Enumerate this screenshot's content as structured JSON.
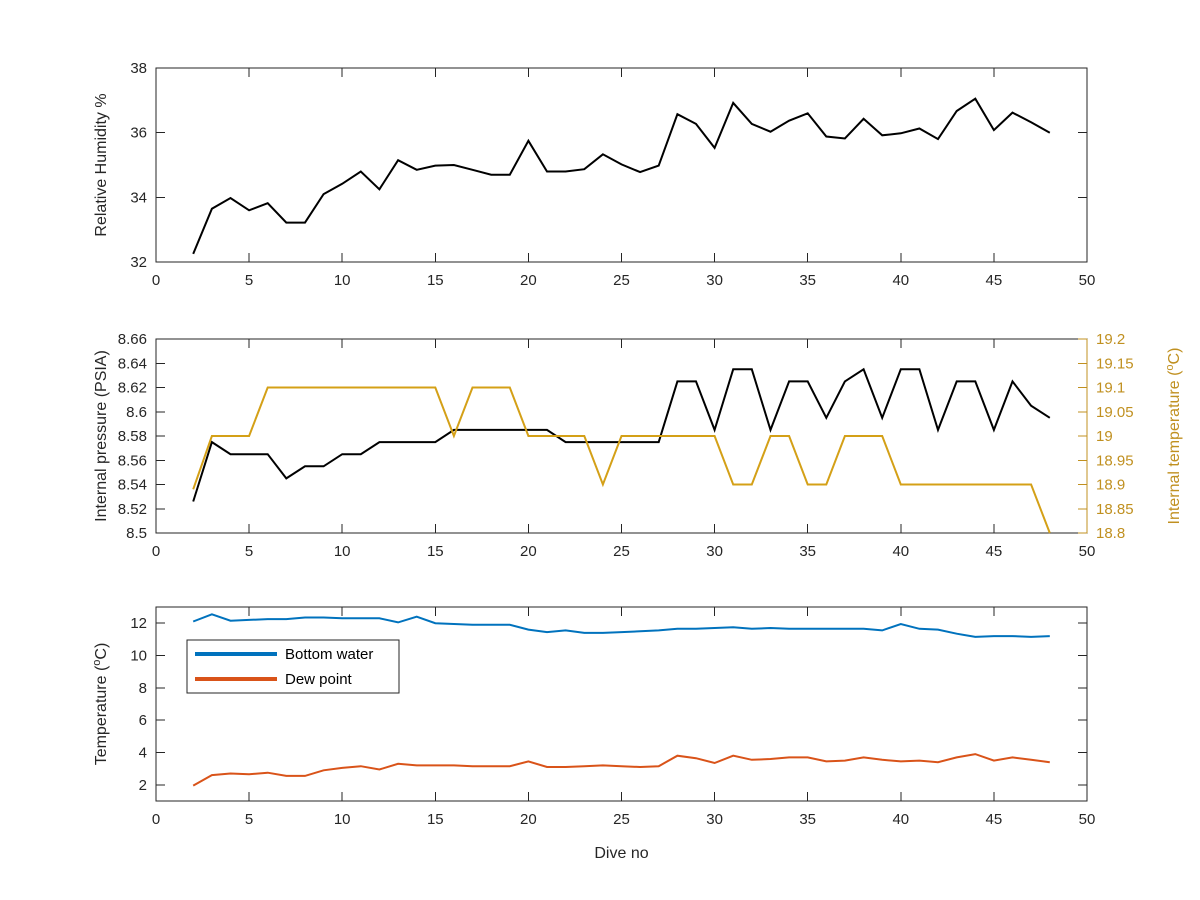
{
  "chart_data": [
    {
      "type": "line",
      "ylabel": "Relative Humidity %",
      "xlabel": "",
      "xlim": [
        0,
        50
      ],
      "ylim": [
        32,
        38
      ],
      "xticks": [
        0,
        5,
        10,
        15,
        20,
        25,
        30,
        35,
        40,
        45,
        50
      ],
      "yticks": [
        32,
        34,
        36,
        38
      ],
      "grid": false,
      "colors": {
        "humidity": "#000000"
      },
      "x": [
        2,
        3,
        4,
        5,
        6,
        7,
        8,
        9,
        10,
        11,
        12,
        13,
        14,
        15,
        16,
        17,
        18,
        19,
        20,
        21,
        22,
        23,
        24,
        25,
        26,
        27,
        28,
        29,
        30,
        31,
        32,
        33,
        34,
        35,
        36,
        37,
        38,
        39,
        40,
        41,
        42,
        43,
        44,
        45,
        46,
        47,
        48
      ],
      "series": [
        {
          "values": [
            32.25,
            33.65,
            33.98,
            33.6,
            33.82,
            33.22,
            33.22,
            34.1,
            34.42,
            34.8,
            34.25,
            35.15,
            34.85,
            34.98,
            35.0,
            34.85,
            34.7,
            34.7,
            35.75,
            34.8,
            34.8,
            34.87,
            35.33,
            35.02,
            34.78,
            34.98,
            36.57,
            36.27,
            35.53,
            36.92,
            36.27,
            36.03,
            36.37,
            36.6,
            35.88,
            35.82,
            36.43,
            35.92,
            35.98,
            36.13,
            35.8,
            36.67,
            37.05,
            36.08,
            36.62,
            36.32,
            36.0
          ]
        }
      ]
    },
    {
      "type": "line",
      "ylabel": "Internal pressure (PSIA)",
      "y2label": "Internal temperature (°C)",
      "xlabel": "",
      "xlim": [
        0,
        50
      ],
      "ylim": [
        8.5,
        8.66
      ],
      "y2lim": [
        18.8,
        19.2
      ],
      "xticks": [
        0,
        5,
        10,
        15,
        20,
        25,
        30,
        35,
        40,
        45,
        50
      ],
      "yticks": [
        "8.5",
        "8.52",
        "8.54",
        "8.56",
        "8.58",
        "8.6",
        "8.62",
        "8.64",
        "8.66"
      ],
      "y2ticks": [
        "18.8",
        "18.85",
        "18.9",
        "18.95",
        "19",
        "19.05",
        "19.1",
        "19.15",
        "19.2"
      ],
      "grid": false,
      "colors": {
        "pressure": "#000000",
        "temperature": "#D4A017",
        "right_axis": "#C09020"
      },
      "x": [
        2,
        3,
        4,
        5,
        6,
        7,
        8,
        9,
        10,
        11,
        12,
        13,
        14,
        15,
        16,
        17,
        18,
        19,
        20,
        21,
        22,
        23,
        24,
        25,
        26,
        27,
        28,
        29,
        30,
        31,
        32,
        33,
        34,
        35,
        36,
        37,
        38,
        39,
        40,
        41,
        42,
        43,
        44,
        45,
        46,
        47,
        48
      ],
      "series": [
        {
          "axis": "left",
          "values": [
            8.526,
            8.575,
            8.565,
            8.565,
            8.565,
            8.545,
            8.555,
            8.555,
            8.565,
            8.565,
            8.575,
            8.575,
            8.575,
            8.575,
            8.585,
            8.585,
            8.585,
            8.585,
            8.585,
            8.585,
            8.575,
            8.575,
            8.575,
            8.575,
            8.575,
            8.575,
            8.625,
            8.625,
            8.585,
            8.635,
            8.635,
            8.585,
            8.625,
            8.625,
            8.595,
            8.625,
            8.635,
            8.595,
            8.635,
            8.635,
            8.585,
            8.625,
            8.625,
            8.585,
            8.625,
            8.605,
            8.595
          ]
        },
        {
          "axis": "right",
          "values": [
            18.89,
            19.0,
            19.0,
            19.0,
            19.1,
            19.1,
            19.1,
            19.1,
            19.1,
            19.1,
            19.1,
            19.1,
            19.1,
            19.1,
            19.0,
            19.1,
            19.1,
            19.1,
            19.0,
            19.0,
            19.0,
            19.0,
            18.9,
            19.0,
            19.0,
            19.0,
            19.0,
            19.0,
            19.0,
            18.9,
            18.9,
            19.0,
            19.0,
            18.9,
            18.9,
            19.0,
            19.0,
            19.0,
            18.9,
            18.9,
            18.9,
            18.9,
            18.9,
            18.9,
            18.9,
            18.9,
            18.8
          ]
        }
      ]
    },
    {
      "type": "line",
      "ylabel": "Temperature (°C)",
      "xlabel": "Dive no",
      "xlim": [
        0,
        50
      ],
      "ylim": [
        1,
        13
      ],
      "xticks": [
        0,
        5,
        10,
        15,
        20,
        25,
        30,
        35,
        40,
        45,
        50
      ],
      "yticks": [
        2,
        4,
        6,
        8,
        10,
        12
      ],
      "grid": false,
      "legend": "top-left",
      "x": [
        2,
        3,
        4,
        5,
        6,
        7,
        8,
        9,
        10,
        11,
        12,
        13,
        14,
        15,
        16,
        17,
        18,
        19,
        20,
        21,
        22,
        23,
        24,
        25,
        26,
        27,
        28,
        29,
        30,
        31,
        32,
        33,
        34,
        35,
        36,
        37,
        38,
        39,
        40,
        41,
        42,
        43,
        44,
        45,
        46,
        47,
        48
      ],
      "series": [
        {
          "name": "Bottom water",
          "color": "#0072BD",
          "values": [
            12.1,
            12.55,
            12.15,
            12.2,
            12.25,
            12.25,
            12.35,
            12.35,
            12.3,
            12.3,
            12.3,
            12.05,
            12.4,
            12.0,
            11.95,
            11.9,
            11.9,
            11.9,
            11.6,
            11.45,
            11.55,
            11.4,
            11.4,
            11.45,
            11.5,
            11.55,
            11.65,
            11.65,
            11.7,
            11.75,
            11.65,
            11.7,
            11.65,
            11.65,
            11.65,
            11.65,
            11.65,
            11.55,
            11.95,
            11.65,
            11.6,
            11.35,
            11.15,
            11.2,
            11.2,
            11.15,
            11.2
          ]
        },
        {
          "name": "Dew point",
          "color": "#D95319",
          "values": [
            1.95,
            2.6,
            2.7,
            2.65,
            2.75,
            2.55,
            2.55,
            2.9,
            3.05,
            3.15,
            2.95,
            3.3,
            3.2,
            3.2,
            3.2,
            3.15,
            3.15,
            3.15,
            3.45,
            3.1,
            3.1,
            3.15,
            3.2,
            3.15,
            3.1,
            3.15,
            3.8,
            3.65,
            3.35,
            3.8,
            3.55,
            3.6,
            3.7,
            3.7,
            3.45,
            3.5,
            3.7,
            3.55,
            3.45,
            3.5,
            3.4,
            3.7,
            3.9,
            3.5,
            3.7,
            3.55,
            3.4
          ]
        }
      ]
    }
  ]
}
